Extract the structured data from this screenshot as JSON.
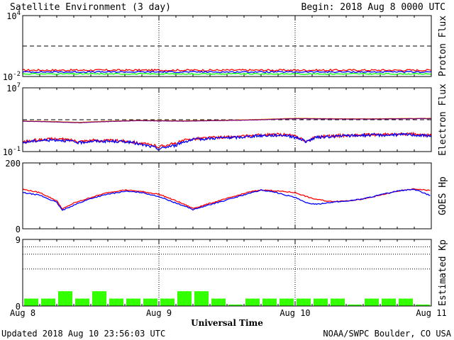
{
  "header": {
    "title": "Satellite Environment (3 day)",
    "begin": "Begin:  2018 Aug 8 0000 UTC"
  },
  "footer": {
    "updated": "Updated 2018 Aug 10 23:56:03 UTC",
    "credit": "NOAA/SWPC Boulder, CO USA"
  },
  "colors": {
    "red": "#ff0000",
    "blue": "#0000ff",
    "green": "#00ff00",
    "orange": "#ffa500",
    "purple": "#7a007a",
    "kp_bar": "#33ff00"
  },
  "chart_data": [
    {
      "type": "line",
      "ylabel": "Proton Flux",
      "yscale": "log",
      "ylim": [
        0.01,
        10000
      ],
      "yticks": [
        {
          "value": 10000,
          "base": "10",
          "exp": "4"
        },
        {
          "value": 0.01,
          "base": "10",
          "exp": "-2"
        }
      ],
      "xlim": [
        0,
        72
      ],
      "threshold": 10,
      "series": [
        {
          "color": "#ff0000",
          "level": 0.042,
          "noise": 0.09
        },
        {
          "color": "#0000ff",
          "level": 0.028,
          "noise": 0.07
        },
        {
          "color": "#00ff00",
          "level": 0.018,
          "noise": 0.06
        }
      ]
    },
    {
      "type": "line",
      "ylabel": "Electron Flux",
      "yscale": "log",
      "ylim": [
        0.1,
        10000000
      ],
      "yticks": [
        {
          "value": 10000000,
          "base": "10",
          "exp": "7"
        },
        {
          "value": 0.1,
          "base": "10",
          "exp": "-1"
        }
      ],
      "xlim": [
        0,
        72
      ],
      "threshold": 1000,
      "series": [
        {
          "color": "#ffa500",
          "points": [
            [
              0,
              700
            ],
            [
              6,
              580
            ],
            [
              10,
              460
            ],
            [
              14,
              620
            ],
            [
              20,
              820
            ],
            [
              24,
              780
            ],
            [
              28,
              720
            ],
            [
              36,
              860
            ],
            [
              42,
              1100
            ],
            [
              48,
              1500
            ],
            [
              54,
              1350
            ],
            [
              60,
              1300
            ],
            [
              66,
              1400
            ],
            [
              72,
              1480
            ]
          ]
        },
        {
          "color": "#7a007a",
          "points": [
            [
              0,
              650
            ],
            [
              6,
              520
            ],
            [
              10,
              420
            ],
            [
              14,
              560
            ],
            [
              20,
              760
            ],
            [
              24,
              720
            ],
            [
              28,
              660
            ],
            [
              36,
              800
            ],
            [
              42,
              1000
            ],
            [
              48,
              1350
            ],
            [
              54,
              1250
            ],
            [
              60,
              1200
            ],
            [
              66,
              1300
            ],
            [
              72,
              1380
            ]
          ]
        },
        {
          "color": "#ff0000",
          "points": [
            [
              0,
              1.5
            ],
            [
              3,
              3
            ],
            [
              6,
              4
            ],
            [
              8,
              3
            ],
            [
              10,
              2
            ],
            [
              12,
              2.5
            ],
            [
              14,
              2.5
            ],
            [
              18,
              2.2
            ],
            [
              21,
              1
            ],
            [
              24,
              0.4
            ],
            [
              27,
              1
            ],
            [
              30,
              4
            ],
            [
              34,
              6
            ],
            [
              38,
              7
            ],
            [
              42,
              12
            ],
            [
              46,
              14
            ],
            [
              48,
              8
            ],
            [
              50,
              1.2
            ],
            [
              52,
              8
            ],
            [
              56,
              10
            ],
            [
              60,
              12
            ],
            [
              64,
              14
            ],
            [
              68,
              16
            ],
            [
              72,
              10
            ]
          ]
        },
        {
          "color": "#0000ff",
          "points": [
            [
              0,
              1.3
            ],
            [
              3,
              2.5
            ],
            [
              6,
              3
            ],
            [
              8,
              2.2
            ],
            [
              10,
              1.2
            ],
            [
              12,
              2
            ],
            [
              14,
              2
            ],
            [
              18,
              1.8
            ],
            [
              21,
              0.7
            ],
            [
              24,
              0.2
            ],
            [
              27,
              0.6
            ],
            [
              30,
              3
            ],
            [
              34,
              5
            ],
            [
              38,
              6
            ],
            [
              42,
              10
            ],
            [
              46,
              12
            ],
            [
              48,
              6
            ],
            [
              50,
              1.5
            ],
            [
              52,
              6
            ],
            [
              56,
              9
            ],
            [
              60,
              11
            ],
            [
              64,
              12
            ],
            [
              68,
              14
            ],
            [
              72,
              8
            ]
          ]
        }
      ]
    },
    {
      "type": "line",
      "ylabel": "GOES Hp",
      "ylim": [
        0,
        200
      ],
      "yticks": [
        {
          "value": 200,
          "label": "200"
        },
        {
          "value": 0,
          "label": "0"
        }
      ],
      "xlim": [
        0,
        72
      ],
      "series": [
        {
          "color": "#ff0000",
          "points": [
            [
              0,
              120
            ],
            [
              3,
              110
            ],
            [
              6,
              85
            ],
            [
              7,
              60
            ],
            [
              9,
              78
            ],
            [
              12,
              95
            ],
            [
              15,
              110
            ],
            [
              18,
              118
            ],
            [
              21,
              113
            ],
            [
              24,
              105
            ],
            [
              27,
              85
            ],
            [
              29,
              70
            ],
            [
              30,
              62
            ],
            [
              32,
              72
            ],
            [
              36,
              92
            ],
            [
              40,
              112
            ],
            [
              42,
              118
            ],
            [
              44,
              116
            ],
            [
              48,
              110
            ],
            [
              51,
              92
            ],
            [
              54,
              83
            ],
            [
              57,
              85
            ],
            [
              60,
              90
            ],
            [
              63,
              102
            ],
            [
              66,
              114
            ],
            [
              69,
              121
            ],
            [
              72,
              116
            ]
          ]
        },
        {
          "color": "#0000ff",
          "points": [
            [
              0,
              110
            ],
            [
              3,
              102
            ],
            [
              6,
              80
            ],
            [
              7,
              56
            ],
            [
              9,
              72
            ],
            [
              12,
              92
            ],
            [
              15,
              105
            ],
            [
              18,
              114
            ],
            [
              21,
              110
            ],
            [
              24,
              98
            ],
            [
              27,
              78
            ],
            [
              29,
              66
            ],
            [
              30,
              58
            ],
            [
              32,
              68
            ],
            [
              36,
              88
            ],
            [
              40,
              108
            ],
            [
              42,
              117
            ],
            [
              44,
              113
            ],
            [
              48,
              95
            ],
            [
              50,
              78
            ],
            [
              52,
              75
            ],
            [
              54,
              80
            ],
            [
              57,
              84
            ],
            [
              60,
              91
            ],
            [
              63,
              103
            ],
            [
              66,
              115
            ],
            [
              69,
              120
            ],
            [
              72,
              100
            ]
          ]
        }
      ]
    },
    {
      "type": "bar",
      "ylabel": "Estimated Kp",
      "ylim": [
        0,
        9
      ],
      "yticks": [
        {
          "value": 9,
          "label": "9"
        },
        {
          "value": 0,
          "label": "0"
        }
      ],
      "gridlines": [
        5,
        7,
        8,
        9
      ],
      "bar_color": "#33ff00",
      "bar_hours": 3,
      "values": [
        1,
        1,
        2,
        1,
        2,
        1,
        1,
        1,
        1,
        2,
        2,
        1,
        0.2,
        1,
        1,
        1,
        1,
        1,
        1,
        0.2,
        1,
        1,
        1,
        0.2
      ]
    }
  ],
  "x_axis": {
    "title": "Universal Time",
    "ticks": [
      {
        "hour": 0,
        "label": "Aug 8"
      },
      {
        "hour": 24,
        "label": "Aug 9"
      },
      {
        "hour": 48,
        "label": "Aug 10"
      },
      {
        "hour": 72,
        "label": "Aug 11"
      }
    ]
  }
}
